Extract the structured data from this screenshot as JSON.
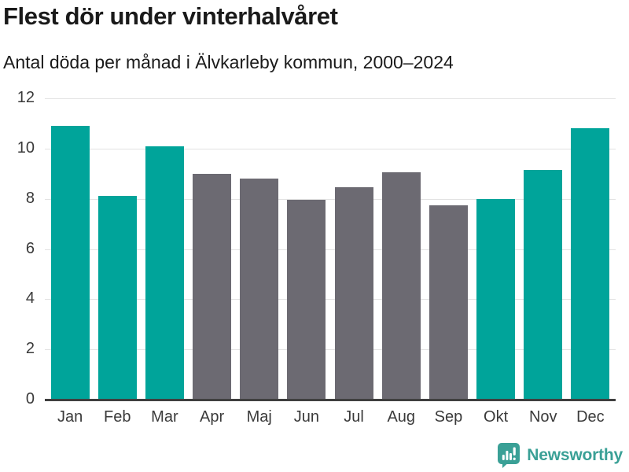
{
  "header": {
    "title": "Flest dör under vinterhalvåret",
    "subtitle": "Antal döda per månad i Älvkarleby kommun, 2000–2024"
  },
  "chart_data": {
    "type": "bar",
    "title": "Flest dör under vinterhalvåret",
    "subtitle": "Antal döda per månad i Älvkarleby kommun, 2000–2024",
    "categories": [
      "Jan",
      "Feb",
      "Mar",
      "Apr",
      "Maj",
      "Jun",
      "Jul",
      "Aug",
      "Sep",
      "Okt",
      "Nov",
      "Dec"
    ],
    "values": [
      10.9,
      8.1,
      10.1,
      9.0,
      8.8,
      7.95,
      8.45,
      9.05,
      7.75,
      8.0,
      9.15,
      10.8
    ],
    "bar_color_keys": [
      "teal",
      "teal",
      "teal",
      "gray",
      "gray",
      "gray",
      "gray",
      "gray",
      "gray",
      "teal",
      "teal",
      "teal"
    ],
    "colors": {
      "teal": "#00a49a",
      "gray": "#6c6a72"
    },
    "xlabel": "",
    "ylabel": "",
    "ylim": [
      0,
      12
    ],
    "yticks": [
      0,
      2,
      4,
      6,
      8,
      10,
      12
    ],
    "grid": true,
    "legend": false,
    "highlight_meaning": "teal = winter half-year months, gray = summer half-year months"
  },
  "footer": {
    "brand": "Newsworthy",
    "brand_color": "#3aa096",
    "logo_icon": "newsworthy-speech-bubble-bar-chart-icon"
  }
}
